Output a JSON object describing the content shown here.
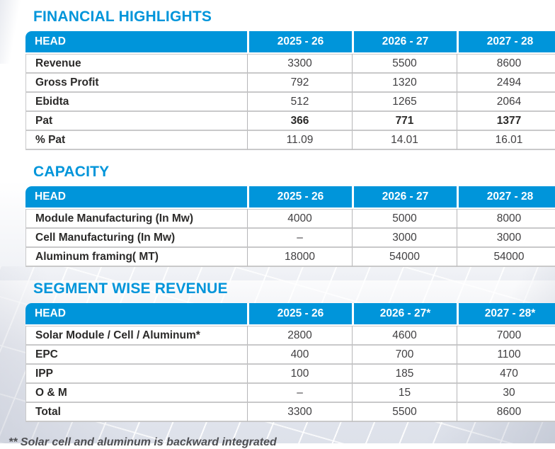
{
  "colors": {
    "accent": "#0095DA",
    "header_background": "#0094D8",
    "header_text": "#FFFFFF",
    "label_text": "#2B2A29",
    "value_text": "#403F41"
  },
  "footnote": "** Solar cell and aluminum is backward integrated",
  "tables": [
    {
      "id": "financial-highlights",
      "title": "FINANCIAL HIGHLIGHTS",
      "columns": [
        "HEAD",
        "2025 - 26",
        "2026 - 27",
        "2027 - 28"
      ],
      "rows": [
        {
          "label": "Revenue",
          "values": [
            "3300",
            "5500",
            "8600"
          ],
          "bold_values": false
        },
        {
          "label": "Gross Profit",
          "values": [
            "792",
            "1320",
            "2494"
          ],
          "bold_values": false
        },
        {
          "label": "Ebidta",
          "values": [
            "512",
            "1265",
            "2064"
          ],
          "bold_values": false
        },
        {
          "label": "Pat",
          "values": [
            "366",
            "771",
            "1377"
          ],
          "bold_values": true
        },
        {
          "label": "% Pat",
          "values": [
            "11.09",
            "14.01",
            "16.01"
          ],
          "bold_values": false
        }
      ]
    },
    {
      "id": "capacity",
      "title": "CAPACITY",
      "columns": [
        "HEAD",
        "2025 - 26",
        "2026 - 27",
        "2027 - 28"
      ],
      "rows": [
        {
          "label": "Module Manufacturing (In Mw)",
          "values": [
            "4000",
            "5000",
            "8000"
          ],
          "bold_values": false
        },
        {
          "label": "Cell Manufacturing (In Mw)",
          "values": [
            "–",
            "3000",
            "3000"
          ],
          "bold_values": false
        },
        {
          "label": "Aluminum framing( MT)",
          "values": [
            "18000",
            "54000",
            "54000"
          ],
          "bold_values": false
        }
      ]
    },
    {
      "id": "segment-wise-revenue",
      "title": "SEGMENT WISE REVENUE",
      "columns": [
        "HEAD",
        "2025 - 26",
        "2026 - 27*",
        "2027 - 28*"
      ],
      "rows": [
        {
          "label": "Solar Module / Cell / Aluminum*",
          "values": [
            "2800",
            "4600",
            "7000"
          ],
          "bold_values": false
        },
        {
          "label": "EPC",
          "values": [
            "400",
            "700",
            "1100"
          ],
          "bold_values": false
        },
        {
          "label": "IPP",
          "values": [
            "100",
            "185",
            "470"
          ],
          "bold_values": false
        },
        {
          "label": "O & M",
          "values": [
            "–",
            "15",
            "30"
          ],
          "bold_values": false
        },
        {
          "label": "Total",
          "values": [
            "3300",
            "5500",
            "8600"
          ],
          "bold_values": false
        }
      ]
    }
  ]
}
